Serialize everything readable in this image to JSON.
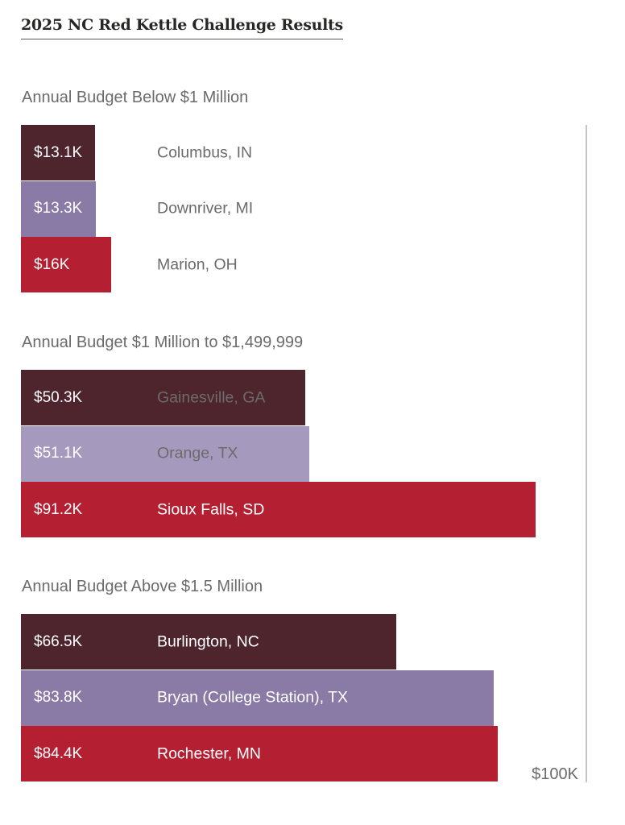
{
  "chart_data": {
    "type": "bar",
    "orientation": "horizontal",
    "title": "2025 NC Red Kettle Challenge Results",
    "xlabel": "",
    "ylabel": "",
    "xlim": [
      0,
      100
    ],
    "units": "thousands of dollars",
    "grid": false,
    "axis_max_label": "$100K",
    "groups": [
      {
        "label": "Annual Budget Below $1 Million",
        "items": [
          {
            "city": "Columbus, IN",
            "value": 13.1,
            "label": "$13.1K",
            "color": "#4f252d"
          },
          {
            "city": "Downriver, MI",
            "value": 13.3,
            "label": "$13.3K",
            "color": "#8a7aa6"
          },
          {
            "city": "Marion, OH",
            "value": 16.0,
            "label": "$16K",
            "color": "#b42032"
          }
        ]
      },
      {
        "label": "Annual Budget $1 Million to $1,499,999",
        "items": [
          {
            "city": "Gainesville, GA",
            "value": 50.3,
            "label": "$50.3K",
            "color": "#4f252d"
          },
          {
            "city": "Orange, TX",
            "value": 51.1,
            "label": "$51.1K",
            "color": "#a59abd"
          },
          {
            "city": "Sioux Falls, SD",
            "value": 91.2,
            "label": "$91.2K",
            "color": "#b42032"
          }
        ]
      },
      {
        "label": "Annual Budget Above $1.5 Million",
        "items": [
          {
            "city": "Burlington, NC",
            "value": 66.5,
            "label": "$66.5K",
            "color": "#4f252d"
          },
          {
            "city": "Bryan (College Station), TX",
            "value": 83.8,
            "label": "$83.8K",
            "color": "#8a7aa6"
          },
          {
            "city": "Rochester, MN",
            "value": 84.4,
            "label": "$84.4K",
            "color": "#b42032"
          }
        ]
      }
    ]
  }
}
